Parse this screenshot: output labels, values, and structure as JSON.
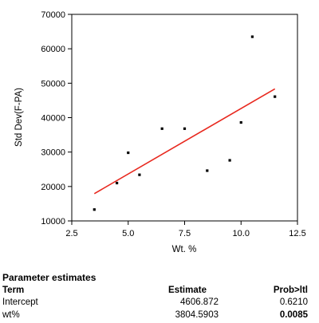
{
  "chart_data": {
    "type": "scatter",
    "title": "",
    "xlabel": "Wt. %",
    "ylabel": "Std Dev(F-PA)",
    "xlim": [
      2.5,
      12.5
    ],
    "ylim": [
      10000,
      70000
    ],
    "x_ticks": [
      "2.5",
      "5.0",
      "7.5",
      "10.0",
      "12.5"
    ],
    "y_ticks": [
      "10000",
      "20000",
      "30000",
      "40000",
      "50000",
      "60000",
      "70000"
    ],
    "x_tick_values": [
      2.5,
      5.0,
      7.5,
      10.0,
      12.5
    ],
    "y_tick_values": [
      10000,
      20000,
      30000,
      40000,
      50000,
      60000,
      70000
    ],
    "points": [
      {
        "x": 3.5,
        "y": 13300
      },
      {
        "x": 4.5,
        "y": 21000
      },
      {
        "x": 5.0,
        "y": 29800
      },
      {
        "x": 5.5,
        "y": 23400
      },
      {
        "x": 6.5,
        "y": 36800
      },
      {
        "x": 7.5,
        "y": 36800
      },
      {
        "x": 8.5,
        "y": 24600
      },
      {
        "x": 9.5,
        "y": 27600
      },
      {
        "x": 10.0,
        "y": 38600
      },
      {
        "x": 10.5,
        "y": 63500
      },
      {
        "x": 11.5,
        "y": 46100
      }
    ],
    "fit_line": {
      "x": [
        3.5,
        11.5
      ],
      "y": [
        17922,
        48359
      ]
    },
    "colors": {
      "points": "#000000",
      "fit_line": "#e8281e",
      "axes": "#000000"
    },
    "grid": false,
    "legend": "none"
  },
  "parameters": {
    "title": "Parameter estimates",
    "headers": {
      "term": "Term",
      "estimate": "Estimate",
      "prob": "Prob>ltl"
    },
    "rows": [
      {
        "term": "Intercept",
        "estimate": "4606.872",
        "prob": "0.6210",
        "prob_bold": false
      },
      {
        "term": "wt%",
        "estimate": "3804.5903",
        "prob": "0.0085",
        "prob_bold": true
      }
    ]
  }
}
